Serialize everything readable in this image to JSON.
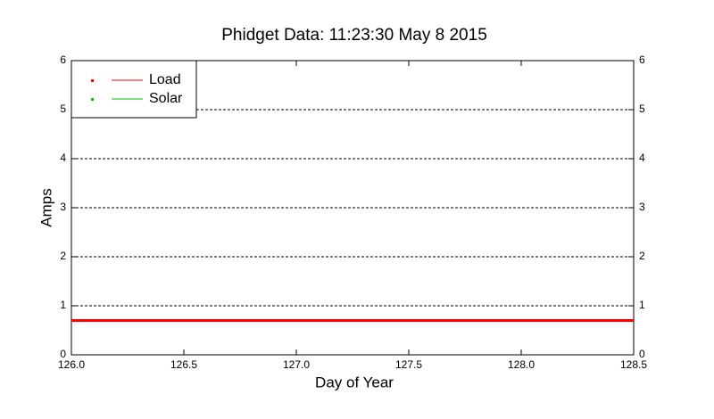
{
  "chart_data": {
    "type": "line",
    "title": "Phidget Data: 11:23:30 May 8 2015",
    "xlabel": "Day of Year",
    "ylabel": "Amps",
    "x": [
      126.0,
      128.5
    ],
    "series": [
      {
        "name": "Load",
        "color": "#ff0000",
        "values": [
          0.7,
          0.7
        ]
      },
      {
        "name": "Solar",
        "color": "#00c000",
        "values": [
          null,
          null
        ]
      }
    ],
    "xlim": [
      126,
      128.5
    ],
    "xticks": [
      {
        "value": 126,
        "label": "126.0"
      },
      126.5,
      {
        "value": 127,
        "label": "127.0"
      },
      127.5,
      {
        "value": 128,
        "label": "128.0"
      },
      128.5
    ],
    "ylim": [
      0,
      6
    ],
    "yticks": [
      0,
      1,
      2,
      3,
      4,
      5,
      6
    ],
    "y2lim": [
      0,
      6
    ],
    "y2ticks": [
      0,
      1,
      2,
      3,
      4,
      5,
      6
    ],
    "grid": true,
    "legend": "upper left"
  }
}
